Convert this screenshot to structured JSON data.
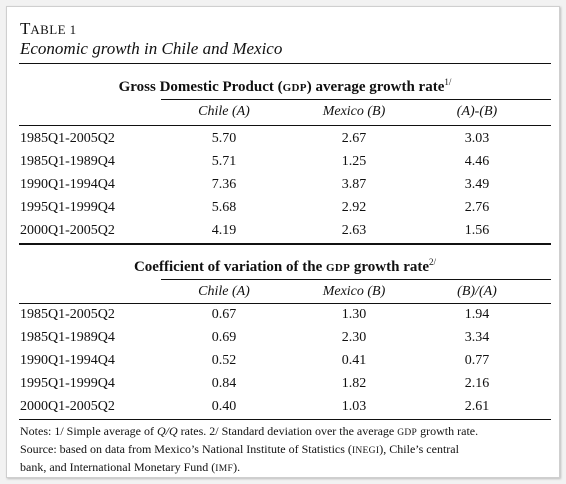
{
  "table_label": {
    "first": "T",
    "rest": "ABLE 1"
  },
  "table_title": "Economic growth in Chile and Mexico",
  "section1": {
    "title_pre": "Gross Domestic Product (",
    "title_abbr": "GDP",
    "title_post": ") average growth rate",
    "title_sup": "1/",
    "headers": [
      "Chile (A)",
      "Mexico (B)",
      "(A)-(B)"
    ],
    "rows": [
      {
        "period": "1985Q1-2005Q2",
        "values": [
          "5.70",
          "2.67",
          "3.03"
        ]
      },
      {
        "period": "1985Q1-1989Q4",
        "values": [
          "5.71",
          "1.25",
          "4.46"
        ]
      },
      {
        "period": "1990Q1-1994Q4",
        "values": [
          "7.36",
          "3.87",
          "3.49"
        ]
      },
      {
        "period": "1995Q1-1999Q4",
        "values": [
          "5.68",
          "2.92",
          "2.76"
        ]
      },
      {
        "period": "2000Q1-2005Q2",
        "values": [
          "4.19",
          "2.63",
          "1.56"
        ]
      }
    ]
  },
  "section2": {
    "title_pre": "Coefficient of variation of the ",
    "title_abbr": "GDP",
    "title_post": " growth rate",
    "title_sup": "2/",
    "headers": [
      "Chile (A)",
      "Mexico (B)",
      "(B)/(A)"
    ],
    "rows": [
      {
        "period": "1985Q1-2005Q2",
        "values": [
          "0.67",
          "1.30",
          "1.94"
        ]
      },
      {
        "period": "1985Q1-1989Q4",
        "values": [
          "0.69",
          "2.30",
          "3.34"
        ]
      },
      {
        "period": "1990Q1-1994Q4",
        "values": [
          "0.52",
          "0.41",
          "0.77"
        ]
      },
      {
        "period": "1995Q1-1999Q4",
        "values": [
          "0.84",
          "1.82",
          "2.16"
        ]
      },
      {
        "period": "2000Q1-2005Q2",
        "values": [
          "0.40",
          "1.03",
          "2.61"
        ]
      }
    ]
  },
  "notes": {
    "n1_a": "Notes: 1/ Simple average of ",
    "n1_qq": "Q/Q",
    "n1_b": " rates. 2/ Standard deviation over the average ",
    "n1_abbr": "GDP",
    "n1_c": " growth rate.",
    "n2_a": "Source: based on data from Mexico’s National Institute of Statistics (",
    "n2_abbr1": "INEGI",
    "n2_b": "), Chile’s central",
    "n3_a": "bank, and International Monetary Fund (",
    "n3_abbr": "IMF",
    "n3_b": ")."
  }
}
